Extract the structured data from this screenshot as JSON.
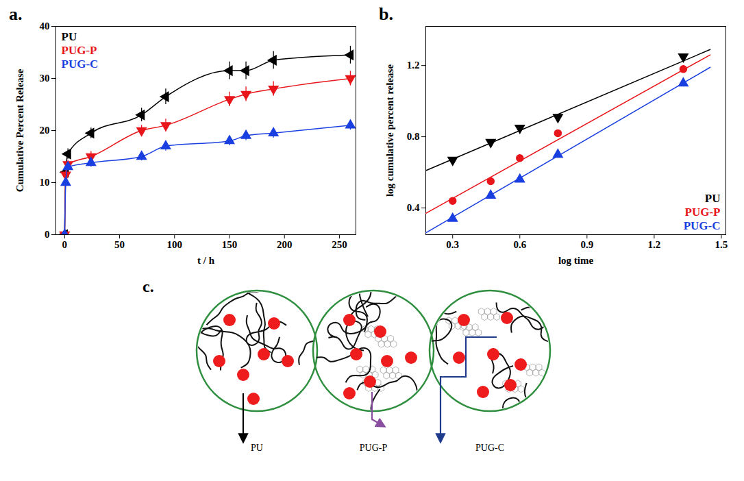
{
  "chart_data": [
    {
      "type": "line",
      "panel_label": "a.",
      "x_label": "t / h",
      "y_label": "Cumulative Percent Release",
      "xlim": [
        -8,
        265
      ],
      "xticks": [
        0,
        50,
        100,
        150,
        200,
        250
      ],
      "ylim": [
        0,
        40
      ],
      "yticks": [
        0,
        10,
        20,
        30,
        40
      ],
      "legend": "top-left",
      "x": [
        0,
        1,
        3,
        24,
        70,
        92,
        150,
        165,
        190,
        260
      ],
      "series": [
        {
          "name": "PU",
          "color": "#000000",
          "marker": "triangle-left",
          "values": [
            0,
            12,
            15.5,
            19.5,
            23,
            26.5,
            31.5,
            31.5,
            33.5,
            34.5
          ],
          "errors": [
            0,
            0.8,
            1,
            1,
            1.3,
            1.5,
            1.7,
            1.7,
            1.7,
            1.7
          ]
        },
        {
          "name": "PUG-P",
          "color": "#e8151b",
          "marker": "triangle-down",
          "values": [
            0,
            11.5,
            13.5,
            15,
            20,
            21,
            26,
            27,
            28,
            30
          ],
          "errors": [
            0,
            0.8,
            0.8,
            1,
            1,
            1.2,
            1.4,
            1.4,
            1.4,
            1.4
          ]
        },
        {
          "name": "PUG-C",
          "color": "#1a3fe0",
          "marker": "triangle-up",
          "values": [
            0,
            10,
            13,
            13.8,
            15,
            17,
            18,
            19,
            19.5,
            21
          ],
          "errors": [
            0,
            0.6,
            0.6,
            0.8,
            0.8,
            0.9,
            0.9,
            0.9,
            0.9,
            0.9
          ]
        }
      ]
    },
    {
      "type": "scatter",
      "panel_label": "b.",
      "x_label": "log time",
      "y_label": "log cumulative percent release",
      "xlim": [
        0.18,
        1.52
      ],
      "xticks": [
        0.3,
        0.6,
        0.9,
        1.2,
        1.5
      ],
      "ylim": [
        0.25,
        1.42
      ],
      "yticks": [
        0.4,
        0.8,
        1.2
      ],
      "legend": "bottom-right",
      "x": [
        0.3,
        0.47,
        0.6,
        0.77,
        1.33
      ],
      "series": [
        {
          "name": "PU",
          "color": "#000000",
          "marker": "triangle-down",
          "values": [
            0.67,
            0.77,
            0.85,
            0.91,
            1.25
          ],
          "fit": {
            "x": [
              0.18,
              1.45
            ],
            "values": [
              0.61,
              1.29
            ]
          }
        },
        {
          "name": "PUG-P",
          "color": "#e8151b",
          "marker": "circle",
          "values": [
            0.44,
            0.55,
            0.68,
            0.82,
            1.18
          ],
          "fit": {
            "x": [
              0.18,
              1.45
            ],
            "values": [
              0.37,
              1.26
            ]
          }
        },
        {
          "name": "PUG-C",
          "color": "#1a3fe0",
          "marker": "triangle-up",
          "values": [
            0.34,
            0.47,
            0.56,
            0.7,
            1.1
          ],
          "fit": {
            "x": [
              0.18,
              1.45
            ],
            "values": [
              0.26,
              1.19
            ]
          }
        }
      ]
    }
  ],
  "diagram": {
    "panel_label": "c.",
    "items": [
      {
        "label": "PU",
        "color": "#000000"
      },
      {
        "label": "PUG-P",
        "color": "#8a4fa0"
      },
      {
        "label": "PUG-C",
        "color": "#1f3b8c"
      }
    ]
  }
}
